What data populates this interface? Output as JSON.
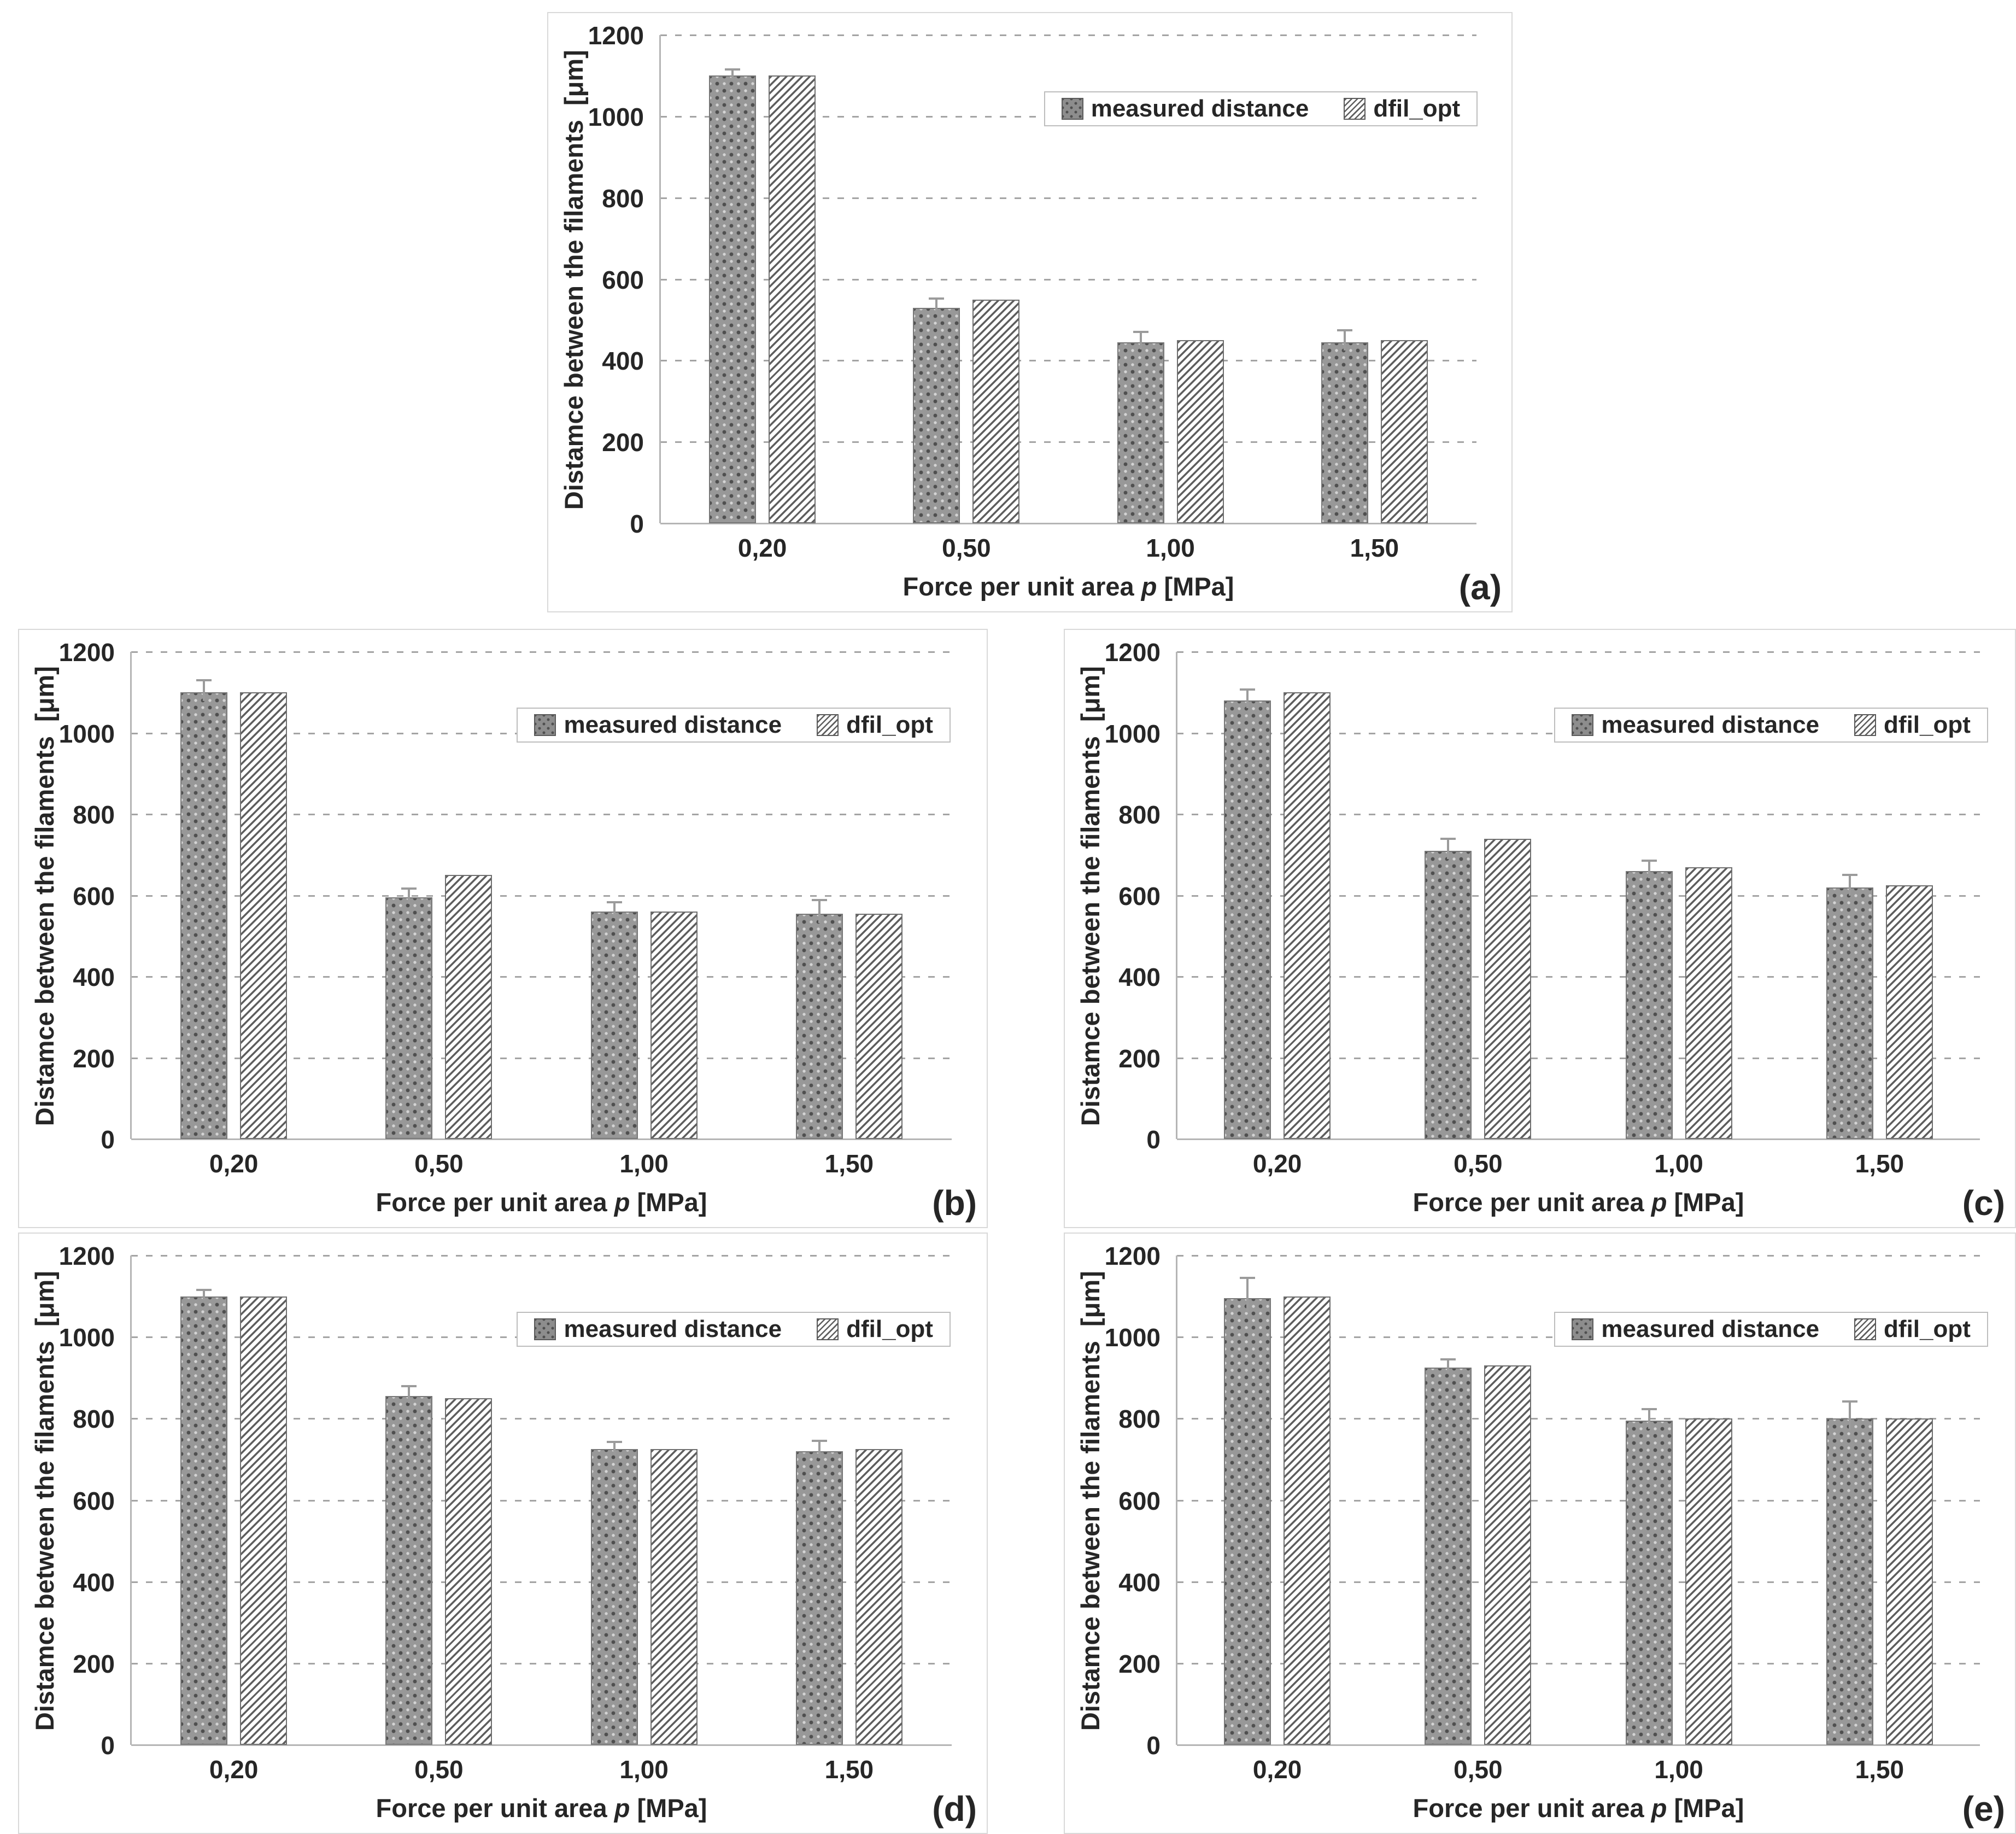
{
  "figure": {
    "ylabel": "Distamce between the filaments  [μm]",
    "xlabel_prefix": "Force per unit area ",
    "xlabel_italic": "p",
    "xlabel_suffix": " [MPa]",
    "legend": {
      "measured": "measured distance",
      "dfil": "dfil_opt"
    },
    "categories": [
      "0,20",
      "0,50",
      "1,00",
      "1,50"
    ],
    "y_ticks": [
      "1200",
      "1000",
      "800",
      "600",
      "400",
      "200",
      "0"
    ],
    "ylim": [
      0,
      1200
    ],
    "grid": "dashed horizontal",
    "legend_position": "inside top-right"
  },
  "colors": {
    "measured_fill": "#989898",
    "measured_dot": "#4f4f4f",
    "hatch_line": "#5e5e5e",
    "gridline": "#a4a4a4",
    "axis_line": "#b5b5b5",
    "text": "#262626",
    "chart_border": "#d9d9d9",
    "error_bar": "#9b9b9b"
  },
  "chart_data": [
    {
      "id": "a",
      "panel_label": "(a)",
      "type": "bar",
      "categories": [
        "0,20",
        "0,50",
        "1,00",
        "1,50"
      ],
      "xlabel": "Force per unit area p [MPa]",
      "ylabel": "Distamce between the filaments [μm]",
      "ylim": [
        0,
        1200
      ],
      "series": [
        {
          "name": "measured distance",
          "values": [
            1100,
            530,
            445,
            445
          ],
          "error_plus": [
            15,
            22,
            25,
            30
          ]
        },
        {
          "name": "dfil_opt",
          "values": [
            1100,
            550,
            450,
            450
          ]
        }
      ]
    },
    {
      "id": "b",
      "panel_label": "(b)",
      "type": "bar",
      "categories": [
        "0,20",
        "0,50",
        "1,00",
        "1,50"
      ],
      "xlabel": "Force per unit area p [MPa]",
      "ylabel": "Distamce between the filaments [μm]",
      "ylim": [
        0,
        1200
      ],
      "series": [
        {
          "name": "measured distance",
          "values": [
            1100,
            595,
            560,
            555
          ],
          "error_plus": [
            30,
            22,
            23,
            33
          ]
        },
        {
          "name": "dfil_opt",
          "values": [
            1100,
            650,
            560,
            555
          ]
        }
      ]
    },
    {
      "id": "c",
      "panel_label": "(c)",
      "type": "bar",
      "categories": [
        "0,20",
        "0,50",
        "1,00",
        "1,50"
      ],
      "xlabel": "Force per unit area p [MPa]",
      "ylabel": "Distamce between the filaments [μm]",
      "ylim": [
        0,
        1200
      ],
      "series": [
        {
          "name": "measured distance",
          "values": [
            1080,
            710,
            660,
            620
          ],
          "error_plus": [
            27,
            30,
            25,
            30
          ]
        },
        {
          "name": "dfil_opt",
          "values": [
            1100,
            740,
            670,
            625
          ]
        }
      ]
    },
    {
      "id": "d",
      "panel_label": "(d)",
      "type": "bar",
      "categories": [
        "0,20",
        "0,50",
        "1,00",
        "1,50"
      ],
      "xlabel": "Force per unit area p [MPa]",
      "ylabel": "Distamce between the filaments [μm]",
      "ylim": [
        0,
        1200
      ],
      "series": [
        {
          "name": "measured distance",
          "values": [
            1100,
            855,
            725,
            720
          ],
          "error_plus": [
            15,
            25,
            18,
            25
          ]
        },
        {
          "name": "dfil_opt",
          "values": [
            1100,
            850,
            725,
            725
          ]
        }
      ]
    },
    {
      "id": "e",
      "panel_label": "(e)",
      "type": "bar",
      "categories": [
        "0,20",
        "0,50",
        "1,00",
        "1,50"
      ],
      "xlabel": "Force per unit area p [MPa]",
      "ylabel": "Distamce between the filaments [μm]",
      "ylim": [
        0,
        1200
      ],
      "series": [
        {
          "name": "measured distance",
          "values": [
            1095,
            925,
            795,
            800
          ],
          "error_plus": [
            50,
            20,
            28,
            42
          ]
        },
        {
          "name": "dfil_opt",
          "values": [
            1100,
            930,
            800,
            800
          ]
        }
      ]
    }
  ]
}
